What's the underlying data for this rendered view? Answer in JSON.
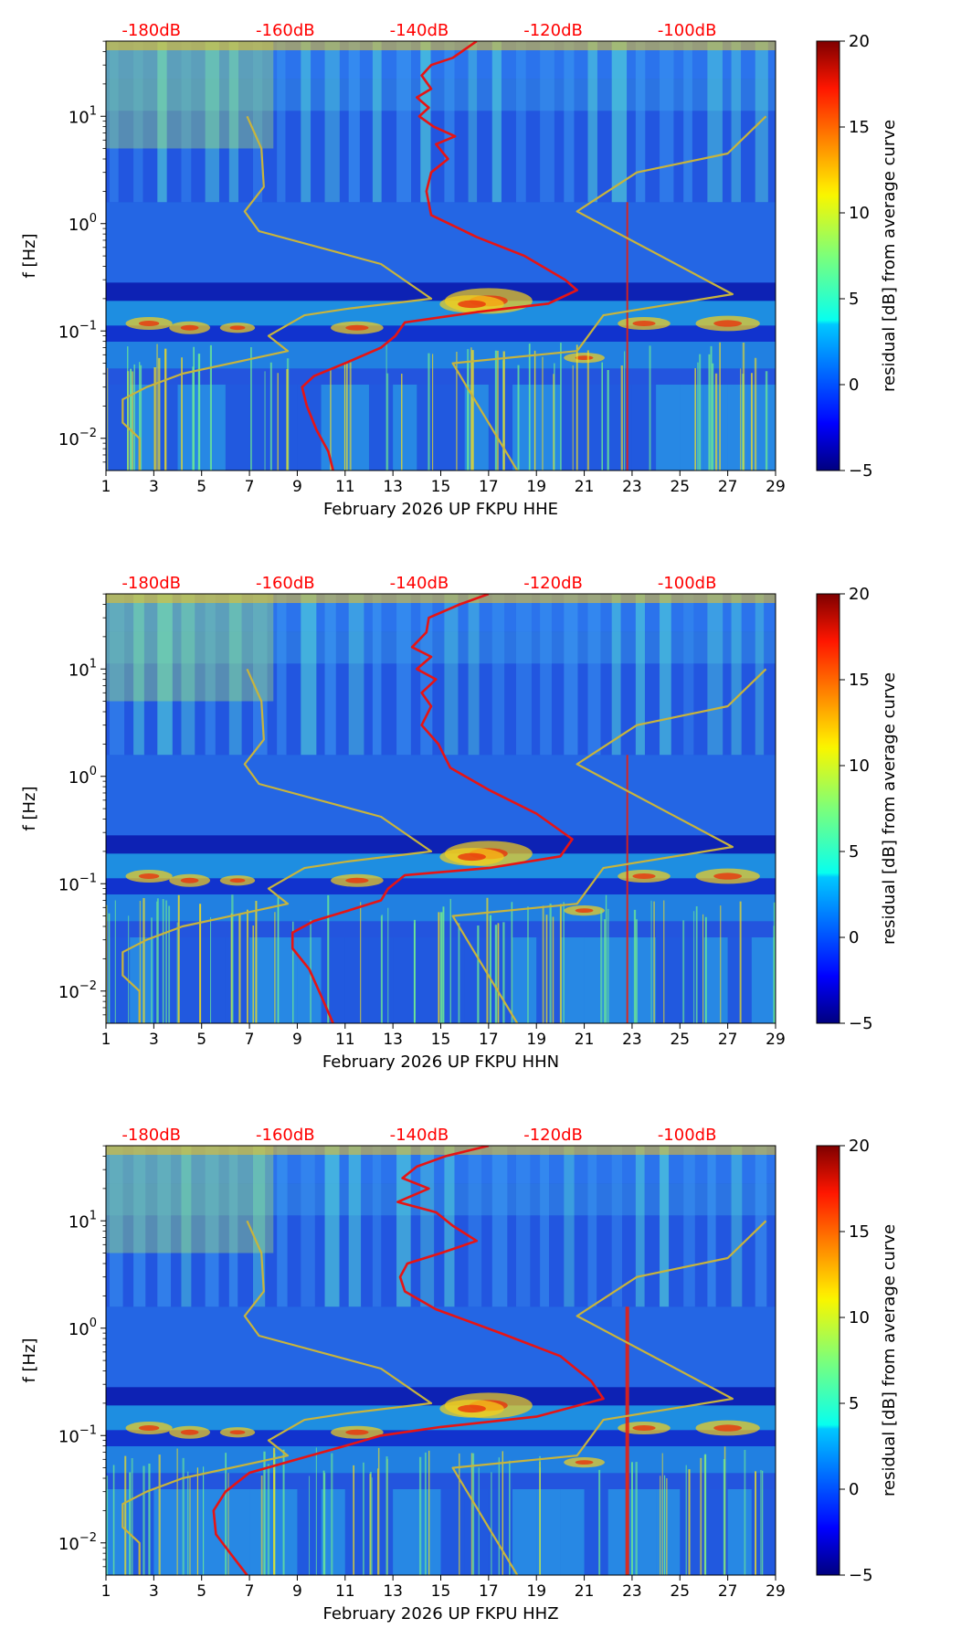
{
  "chart_data": [
    {
      "type": "heatmap",
      "title": "",
      "xlabel": "February 2026 UP FKPU  HHE",
      "ylabel": "f [Hz]",
      "xlim": [
        1,
        29
      ],
      "ylim_log10": [
        -2.3,
        1.7
      ],
      "x_ticks": [
        "1",
        "3",
        "5",
        "7",
        "9",
        "11",
        "13",
        "15",
        "17",
        "19",
        "21",
        "23",
        "25",
        "27",
        "29"
      ],
      "y_ticks": [
        {
          "base": "10",
          "exp": "1"
        },
        {
          "base": "10",
          "exp": "0"
        },
        {
          "base": "10",
          "exp": "−1"
        },
        {
          "base": "10",
          "exp": "−2"
        }
      ],
      "top_ticks": [
        "-180dB",
        "-160dB",
        "-140dB",
        "-120dB",
        "-100dB"
      ],
      "top_tick_color": "#ff0000",
      "colorbar": {
        "label": "residual [dB] from average curve",
        "range": [
          -5,
          20
        ],
        "ticks": [
          "20",
          "15",
          "10",
          "5",
          "0",
          "−5"
        ]
      },
      "series": [
        {
          "name": "noise model bounds",
          "color": "#c8b43c",
          "points": [
            [
              6.9,
              10
            ],
            [
              7.5,
              5
            ],
            [
              7.6,
              2.2
            ],
            [
              6.8,
              1.3
            ],
            [
              7.4,
              0.85
            ],
            [
              12.5,
              0.42
            ],
            [
              14.6,
              0.2
            ],
            [
              11,
              0.16
            ],
            [
              9.3,
              0.14
            ],
            [
              7.8,
              0.09
            ],
            [
              8.6,
              0.065
            ],
            [
              4.2,
              0.04
            ],
            [
              2.7,
              0.03
            ],
            [
              1.7,
              0.023
            ],
            [
              1.7,
              0.014
            ],
            [
              2.4,
              0.01
            ],
            [
              2.4,
              0.005
            ]
          ]
        },
        {
          "name": "noise model bounds",
          "color": "#c8b43c",
          "points": [
            [
              28.6,
              10
            ],
            [
              27,
              4.5
            ],
            [
              23.2,
              3
            ],
            [
              20.7,
              1.3
            ],
            [
              27.2,
              0.22
            ],
            [
              21.8,
              0.14
            ],
            [
              20.7,
              0.065
            ],
            [
              15.5,
              0.05
            ],
            [
              18.2,
              0.005
            ]
          ]
        },
        {
          "name": "average curve",
          "color": "#e61414",
          "points": [
            [
              16.5,
              50
            ],
            [
              15.5,
              35
            ],
            [
              14.6,
              30
            ],
            [
              14.2,
              24
            ],
            [
              14.6,
              18
            ],
            [
              14.0,
              15
            ],
            [
              14.5,
              12
            ],
            [
              14.1,
              10
            ],
            [
              14.7,
              8
            ],
            [
              15.6,
              6.5
            ],
            [
              14.8,
              5.5
            ],
            [
              15.3,
              4
            ],
            [
              14.6,
              3
            ],
            [
              14.4,
              2
            ],
            [
              14.6,
              1.2
            ],
            [
              16.5,
              0.75
            ],
            [
              18.5,
              0.5
            ],
            [
              20.2,
              0.3
            ],
            [
              20.7,
              0.24
            ],
            [
              19.5,
              0.18
            ],
            [
              16.5,
              0.15
            ],
            [
              13.5,
              0.12
            ],
            [
              13.1,
              0.09
            ],
            [
              12.5,
              0.07
            ],
            [
              11.0,
              0.05
            ],
            [
              9.7,
              0.038
            ],
            [
              9.2,
              0.03
            ],
            [
              9.4,
              0.02
            ],
            [
              9.8,
              0.012
            ],
            [
              10.3,
              0.0075
            ],
            [
              10.5,
              0.005
            ]
          ]
        }
      ]
    },
    {
      "type": "heatmap",
      "title": "",
      "xlabel": "February 2026 UP FKPU  HHN",
      "ylabel": "f [Hz]",
      "xlim": [
        1,
        29
      ],
      "ylim_log10": [
        -2.3,
        1.7
      ],
      "x_ticks": [
        "1",
        "3",
        "5",
        "7",
        "9",
        "11",
        "13",
        "15",
        "17",
        "19",
        "21",
        "23",
        "25",
        "27",
        "29"
      ],
      "y_ticks": [
        {
          "base": "10",
          "exp": "1"
        },
        {
          "base": "10",
          "exp": "0"
        },
        {
          "base": "10",
          "exp": "−1"
        },
        {
          "base": "10",
          "exp": "−2"
        }
      ],
      "top_ticks": [
        "-180dB",
        "-160dB",
        "-140dB",
        "-120dB",
        "-100dB"
      ],
      "top_tick_color": "#ff0000",
      "colorbar": {
        "label": "residual [dB] from average curve",
        "range": [
          -5,
          20
        ],
        "ticks": [
          "20",
          "15",
          "10",
          "5",
          "0",
          "−5"
        ]
      },
      "series": [
        {
          "name": "noise model bounds",
          "color": "#c8b43c",
          "points": [
            [
              6.9,
              10
            ],
            [
              7.5,
              5
            ],
            [
              7.6,
              2.2
            ],
            [
              6.8,
              1.3
            ],
            [
              7.4,
              0.85
            ],
            [
              12.5,
              0.42
            ],
            [
              14.6,
              0.2
            ],
            [
              11,
              0.16
            ],
            [
              9.3,
              0.14
            ],
            [
              7.8,
              0.09
            ],
            [
              8.6,
              0.065
            ],
            [
              4.2,
              0.04
            ],
            [
              2.7,
              0.03
            ],
            [
              1.7,
              0.023
            ],
            [
              1.7,
              0.014
            ],
            [
              2.4,
              0.01
            ],
            [
              2.4,
              0.005
            ]
          ]
        },
        {
          "name": "noise model bounds",
          "color": "#c8b43c",
          "points": [
            [
              28.6,
              10
            ],
            [
              27,
              4.5
            ],
            [
              23.2,
              3
            ],
            [
              20.7,
              1.3
            ],
            [
              27.2,
              0.22
            ],
            [
              21.8,
              0.14
            ],
            [
              20.7,
              0.065
            ],
            [
              15.5,
              0.05
            ],
            [
              18.2,
              0.005
            ]
          ]
        },
        {
          "name": "average curve",
          "color": "#e61414",
          "points": [
            [
              17.0,
              50
            ],
            [
              15.8,
              40
            ],
            [
              14.5,
              30
            ],
            [
              14.4,
              22
            ],
            [
              13.8,
              16
            ],
            [
              14.6,
              13
            ],
            [
              14.0,
              10
            ],
            [
              14.8,
              8
            ],
            [
              14.2,
              6
            ],
            [
              14.6,
              4.5
            ],
            [
              14.2,
              3
            ],
            [
              14.9,
              2
            ],
            [
              15.4,
              1.2
            ],
            [
              17.0,
              0.75
            ],
            [
              19.0,
              0.45
            ],
            [
              20.5,
              0.26
            ],
            [
              20.0,
              0.18
            ],
            [
              17.0,
              0.14
            ],
            [
              13.5,
              0.12
            ],
            [
              12.8,
              0.09
            ],
            [
              12.5,
              0.07
            ],
            [
              11.0,
              0.055
            ],
            [
              9.7,
              0.045
            ],
            [
              8.8,
              0.035
            ],
            [
              8.8,
              0.025
            ],
            [
              9.5,
              0.016
            ],
            [
              10.0,
              0.009
            ],
            [
              10.5,
              0.005
            ]
          ]
        }
      ]
    },
    {
      "type": "heatmap",
      "title": "",
      "xlabel": "February 2026 UP FKPU  HHZ",
      "ylabel": "f [Hz]",
      "xlim": [
        1,
        29
      ],
      "ylim_log10": [
        -2.3,
        1.7
      ],
      "x_ticks": [
        "1",
        "3",
        "5",
        "7",
        "9",
        "11",
        "13",
        "15",
        "17",
        "19",
        "21",
        "23",
        "25",
        "27",
        "29"
      ],
      "y_ticks": [
        {
          "base": "10",
          "exp": "1"
        },
        {
          "base": "10",
          "exp": "0"
        },
        {
          "base": "10",
          "exp": "−1"
        },
        {
          "base": "10",
          "exp": "−2"
        }
      ],
      "top_ticks": [
        "-180dB",
        "-160dB",
        "-140dB",
        "-120dB",
        "-100dB"
      ],
      "top_tick_color": "#ff0000",
      "colorbar": {
        "label": "residual [dB] from average curve",
        "range": [
          -5,
          20
        ],
        "ticks": [
          "20",
          "15",
          "10",
          "5",
          "0",
          "−5"
        ]
      },
      "series": [
        {
          "name": "noise model bounds",
          "color": "#c8b43c",
          "points": [
            [
              6.9,
              10
            ],
            [
              7.5,
              5
            ],
            [
              7.6,
              2.2
            ],
            [
              6.8,
              1.3
            ],
            [
              7.4,
              0.85
            ],
            [
              12.5,
              0.42
            ],
            [
              14.6,
              0.2
            ],
            [
              11,
              0.16
            ],
            [
              9.3,
              0.14
            ],
            [
              7.8,
              0.09
            ],
            [
              8.6,
              0.065
            ],
            [
              4.2,
              0.04
            ],
            [
              2.7,
              0.03
            ],
            [
              1.7,
              0.023
            ],
            [
              1.7,
              0.014
            ],
            [
              2.4,
              0.01
            ],
            [
              2.4,
              0.005
            ]
          ]
        },
        {
          "name": "noise model bounds",
          "color": "#c8b43c",
          "points": [
            [
              28.6,
              10
            ],
            [
              27,
              4.5
            ],
            [
              23.2,
              3
            ],
            [
              20.7,
              1.3
            ],
            [
              27.2,
              0.22
            ],
            [
              21.8,
              0.14
            ],
            [
              20.7,
              0.065
            ],
            [
              15.5,
              0.05
            ],
            [
              18.2,
              0.005
            ]
          ]
        },
        {
          "name": "average curve",
          "color": "#e61414",
          "points": [
            [
              17.0,
              50
            ],
            [
              15.2,
              40
            ],
            [
              14.0,
              32
            ],
            [
              13.4,
              25
            ],
            [
              14.5,
              20
            ],
            [
              13.2,
              15
            ],
            [
              14.8,
              12
            ],
            [
              15.5,
              9
            ],
            [
              16.5,
              6.5
            ],
            [
              15.0,
              5
            ],
            [
              13.6,
              4
            ],
            [
              13.3,
              3
            ],
            [
              13.5,
              2.2
            ],
            [
              14.8,
              1.5
            ],
            [
              17.5,
              0.9
            ],
            [
              20.0,
              0.55
            ],
            [
              21.3,
              0.32
            ],
            [
              21.8,
              0.22
            ],
            [
              19.0,
              0.15
            ],
            [
              15.0,
              0.12
            ],
            [
              12.5,
              0.1
            ],
            [
              11.0,
              0.08
            ],
            [
              9.0,
              0.06
            ],
            [
              7.0,
              0.045
            ],
            [
              6.0,
              0.03
            ],
            [
              5.5,
              0.02
            ],
            [
              5.6,
              0.012
            ],
            [
              6.2,
              0.008
            ],
            [
              6.9,
              0.005
            ]
          ]
        }
      ]
    }
  ]
}
